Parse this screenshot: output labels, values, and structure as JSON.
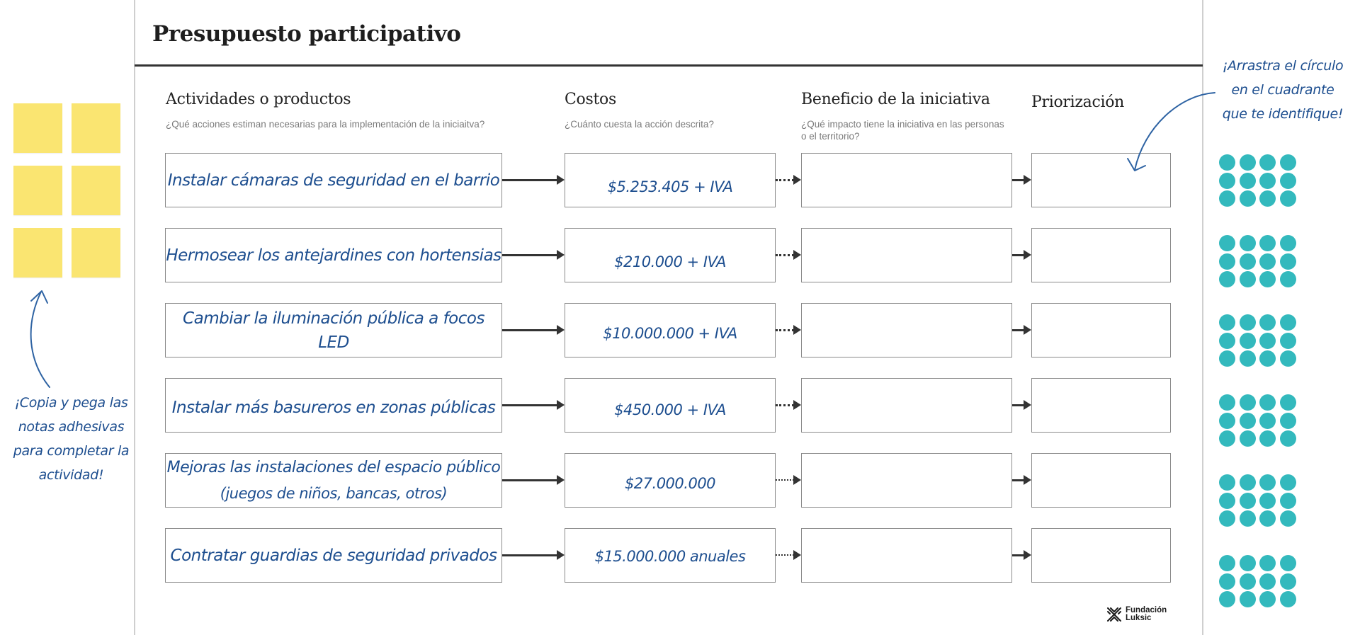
{
  "page": {
    "title": "Presupuesto participativo"
  },
  "columns": {
    "activities": {
      "title": "Actividades o productos",
      "subtitle": "¿Qué acciones estiman necesarias para la implementación de la iniciaitva?"
    },
    "costs": {
      "title": "Costos",
      "subtitle": "¿Cuánto cuesta la acción descrita?"
    },
    "benefit": {
      "title": "Beneficio de la iniciativa",
      "subtitle_line1": "¿Qué impacto tiene la iniciativa en las personas",
      "subtitle_line2": "o el territorio?"
    },
    "priority": {
      "title": "Priorización"
    }
  },
  "rows": [
    {
      "activity": "Instalar cámaras de seguridad en el barrio",
      "activity_sub": "",
      "cost": "$5.253.405 + IVA",
      "benefit": "",
      "priority": ""
    },
    {
      "activity": "Hermosear los antejardines con hortensias",
      "activity_sub": "",
      "cost": "$210.000 + IVA",
      "benefit": "",
      "priority": ""
    },
    {
      "activity": "Cambiar la iluminación pública a focos LED",
      "activity_sub": "",
      "cost": "$10.000.000 + IVA",
      "benefit": "",
      "priority": ""
    },
    {
      "activity": "Instalar más basureros en zonas públicas",
      "activity_sub": "",
      "cost": "$450.000 + IVA",
      "benefit": "",
      "priority": ""
    },
    {
      "activity": "Mejoras las instalaciones del espacio público",
      "activity_sub": "(juegos de niños, bancas, otros)",
      "cost": "$27.000.000",
      "benefit": "",
      "priority": ""
    },
    {
      "activity": "Contratar guardias de seguridad privados",
      "activity_sub": "",
      "cost": "$15.000.000 anuales",
      "benefit": "",
      "priority": ""
    }
  ],
  "left_panel": {
    "sticky_note_count": 6,
    "sticky_color": "#fae571",
    "instruction_lines": [
      "¡Copia y pega las",
      "notas adhesivas",
      "para completar la",
      "actividad!"
    ]
  },
  "right_panel": {
    "instruction_lines": [
      "¡Arrastra el círculo",
      "en el  cuadrante",
      "que te identifique!"
    ],
    "dot_groups": 6,
    "dots_per_group": 12,
    "dot_color": "#33b9bd"
  },
  "logo": {
    "line1": "Fundación",
    "line2": "Luksic"
  },
  "colors": {
    "handwriting": "#1d4e8f",
    "box_border": "#8a8a8a",
    "arrow": "#333333"
  }
}
